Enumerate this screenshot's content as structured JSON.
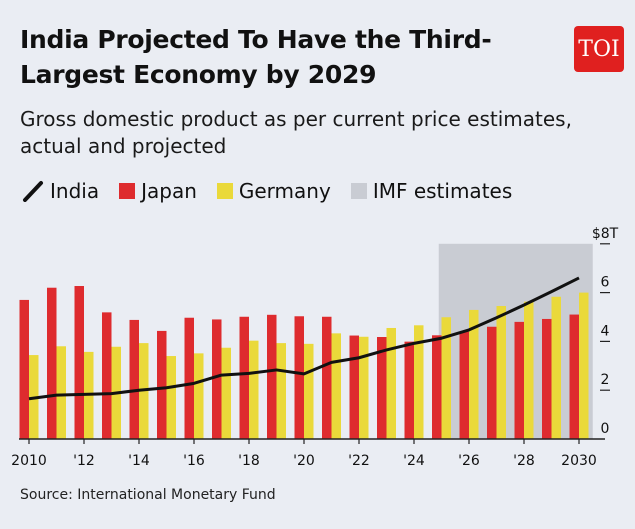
{
  "header": {
    "title": "India Projected To Have the Third-Largest Economy by 2029",
    "subtitle": "Gross domestic product as per current price estimates, actual and projected",
    "logo_text": "TOI"
  },
  "legend": [
    {
      "label": "India",
      "kind": "line",
      "color": "#111111"
    },
    {
      "label": "Japan",
      "kind": "bar",
      "color": "#de2b2e"
    },
    {
      "label": "Germany",
      "kind": "bar",
      "color": "#ead93a"
    },
    {
      "label": "IMF estimates",
      "kind": "area",
      "color": "#c9ccd3"
    }
  ],
  "source": "Source: International Monetary Fund",
  "chart_data": {
    "type": "bar",
    "x": [
      2010,
      2011,
      2012,
      2013,
      2014,
      2015,
      2016,
      2017,
      2018,
      2019,
      2020,
      2021,
      2022,
      2023,
      2024,
      2025,
      2026,
      2027,
      2028,
      2029,
      2030
    ],
    "x_tick_labels": [
      {
        "year": 2010,
        "label": "2010"
      },
      {
        "year": 2012,
        "label": "'12"
      },
      {
        "year": 2014,
        "label": "'14"
      },
      {
        "year": 2016,
        "label": "'16"
      },
      {
        "year": 2018,
        "label": "'18"
      },
      {
        "year": 2020,
        "label": "'20"
      },
      {
        "year": 2022,
        "label": "'22"
      },
      {
        "year": 2024,
        "label": "'24"
      },
      {
        "year": 2026,
        "label": "'26"
      },
      {
        "year": 2028,
        "label": "'28"
      },
      {
        "year": 2030,
        "label": "2030"
      }
    ],
    "y_ticks": [
      {
        "value": 0,
        "label": "0"
      },
      {
        "value": 2,
        "label": "2"
      },
      {
        "value": 4,
        "label": "4"
      },
      {
        "value": 6,
        "label": "6"
      },
      {
        "value": 8,
        "label": "$8T"
      }
    ],
    "ylim": [
      0,
      8
    ],
    "y_axis_side": "right",
    "shaded_region": {
      "label": "IMF estimates",
      "x_start": 2024.9,
      "x_end": 2030.5
    },
    "series": [
      {
        "name": "Japan",
        "type": "bar",
        "color": "#de2b2e",
        "values": [
          5.7,
          6.2,
          6.27,
          5.19,
          4.88,
          4.43,
          4.97,
          4.9,
          5.01,
          5.09,
          5.03,
          5.01,
          4.24,
          4.18,
          3.99,
          4.25,
          4.4,
          4.6,
          4.8,
          4.92,
          5.1
        ]
      },
      {
        "name": "Germany",
        "type": "bar",
        "color": "#ead93a",
        "values": [
          3.44,
          3.8,
          3.57,
          3.78,
          3.93,
          3.4,
          3.51,
          3.74,
          4.03,
          3.93,
          3.9,
          4.33,
          4.19,
          4.55,
          4.66,
          4.99,
          5.29,
          5.45,
          5.63,
          5.83,
          6.0
        ]
      },
      {
        "name": "India",
        "type": "line",
        "color": "#111111",
        "values": [
          1.65,
          1.8,
          1.83,
          1.86,
          2.0,
          2.1,
          2.28,
          2.62,
          2.69,
          2.83,
          2.67,
          3.14,
          3.33,
          3.65,
          3.92,
          4.13,
          4.47,
          4.97,
          5.49,
          6.04,
          6.6
        ]
      }
    ],
    "grid": false
  }
}
